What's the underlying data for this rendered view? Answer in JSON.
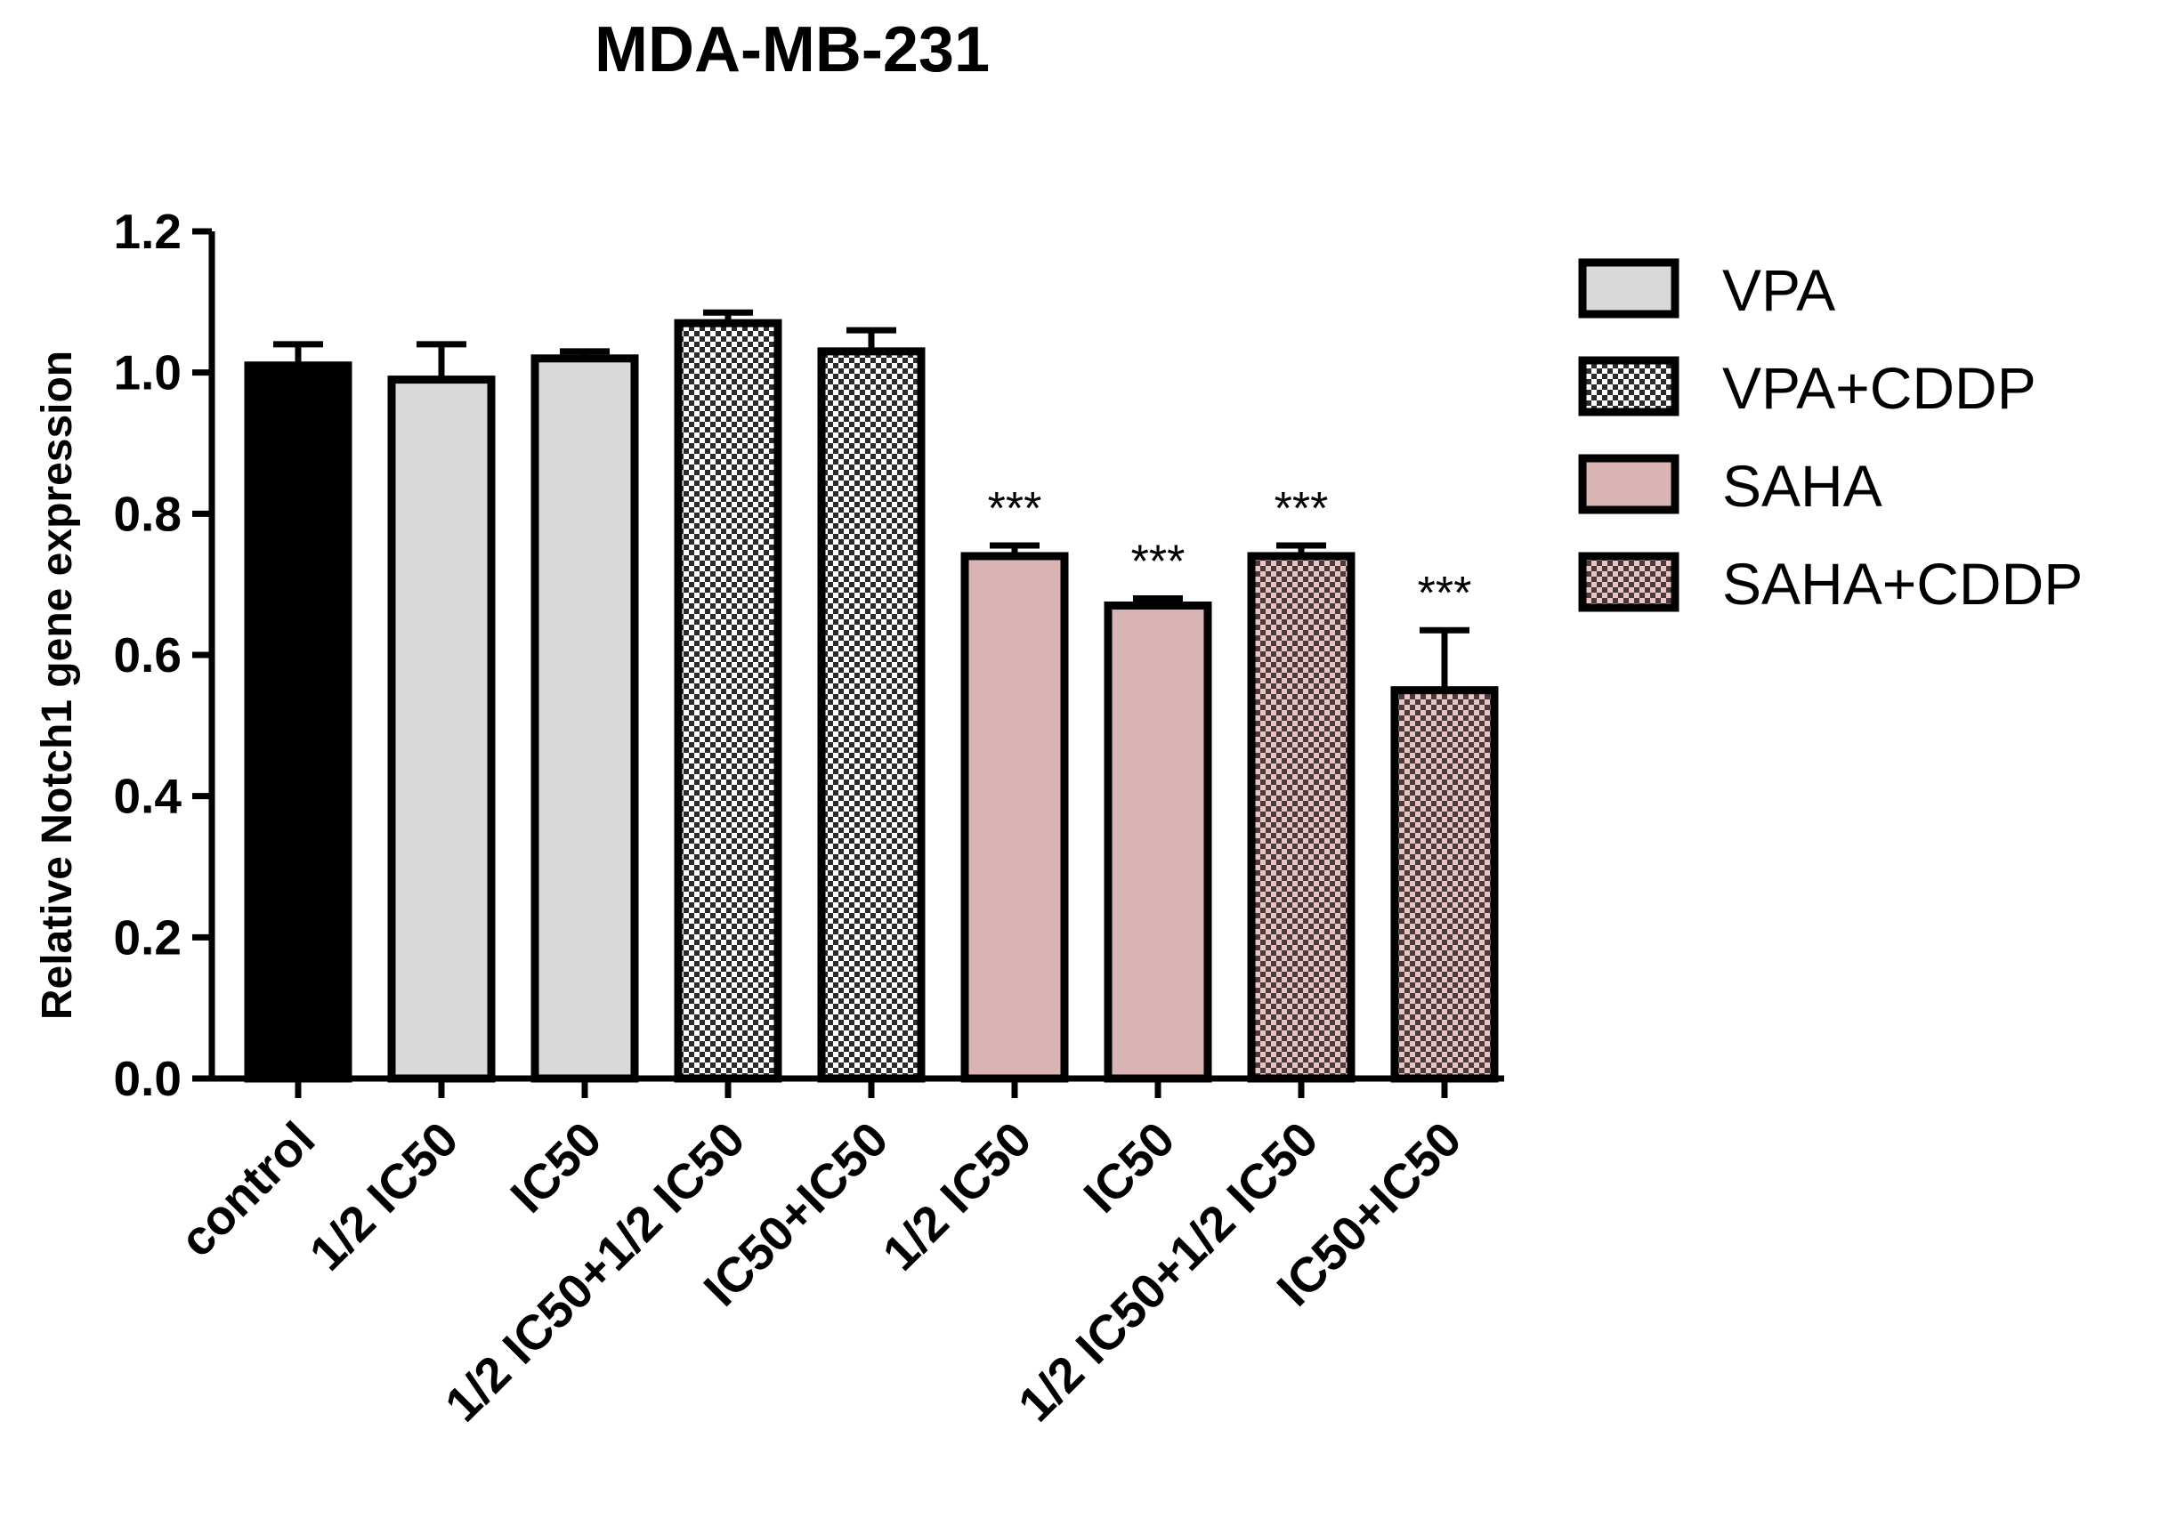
{
  "chart_data": {
    "type": "bar",
    "title": "MDA-MB-231",
    "xlabel": "",
    "ylabel": "Relative Notch1 gene expression",
    "ylim": [
      0,
      1.2
    ],
    "yticks": [
      "0.0",
      "0.2",
      "0.4",
      "0.6",
      "0.8",
      "1.0",
      "1.2"
    ],
    "categories": [
      "control",
      "1/2 IC50",
      "IC50",
      "1/2 IC50+1/2 IC50",
      "IC50+IC50",
      "1/2 IC50",
      "IC50",
      "1/2 IC50+1/2 IC50",
      "IC50+IC50"
    ],
    "values": [
      1.01,
      0.99,
      1.02,
      1.07,
      1.03,
      0.74,
      0.67,
      0.74,
      0.55
    ],
    "errors": [
      0.03,
      0.05,
      0.01,
      0.015,
      0.03,
      0.015,
      0.01,
      0.015,
      0.085
    ],
    "groups": [
      "control",
      "VPA",
      "VPA",
      "VPA+CDDP",
      "VPA+CDDP",
      "SAHA",
      "SAHA",
      "SAHA+CDDP",
      "SAHA+CDDP"
    ],
    "significance": [
      "",
      "",
      "",
      "",
      "",
      "***",
      "***",
      "***",
      "***"
    ],
    "legend": [
      {
        "name": "VPA",
        "color": "#d9d9d9",
        "pattern": "solid"
      },
      {
        "name": "VPA+CDDP",
        "color": "#d9d9d9",
        "pattern": "checker"
      },
      {
        "name": "SAHA",
        "color": "#d8b4b4",
        "pattern": "solid"
      },
      {
        "name": "SAHA+CDDP",
        "color": "#d8b4b4",
        "pattern": "checker"
      }
    ],
    "legend_position": "top-right",
    "colors": {
      "control": "#000000",
      "vpa": "#d9d9d9",
      "saha": "#d8b4b4",
      "axis": "#000000"
    }
  }
}
